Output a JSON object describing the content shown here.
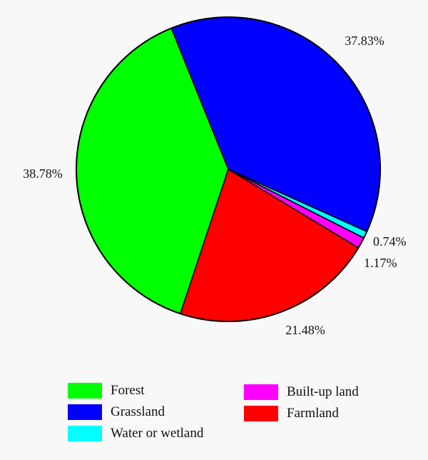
{
  "chart_data": {
    "type": "pie",
    "title": "",
    "slices": [
      {
        "label": "Grassland",
        "value": 37.83,
        "value_text": "37.83%",
        "color": "#0000ff"
      },
      {
        "label": "Water or wetland",
        "value": 0.74,
        "value_text": "0.74%",
        "color": "#00ffff"
      },
      {
        "label": "Built-up land",
        "value": 1.17,
        "value_text": "1.17%",
        "color": "#ff00ff"
      },
      {
        "label": "Farmland",
        "value": 21.48,
        "value_text": "21.48%",
        "color": "#ff0000"
      },
      {
        "label": "Forest",
        "value": 38.78,
        "value_text": "38.78%",
        "color": "#00ff00"
      }
    ],
    "legend": [
      {
        "label": "Forest",
        "color": "#00ff00"
      },
      {
        "label": "Grassland",
        "color": "#0000ff"
      },
      {
        "label": "Water or wetland",
        "color": "#00ffff"
      },
      {
        "label": "Built-up land",
        "color": "#ff00ff"
      },
      {
        "label": "Farmland",
        "color": "#ff0000"
      }
    ],
    "legend_position": "bottom"
  }
}
